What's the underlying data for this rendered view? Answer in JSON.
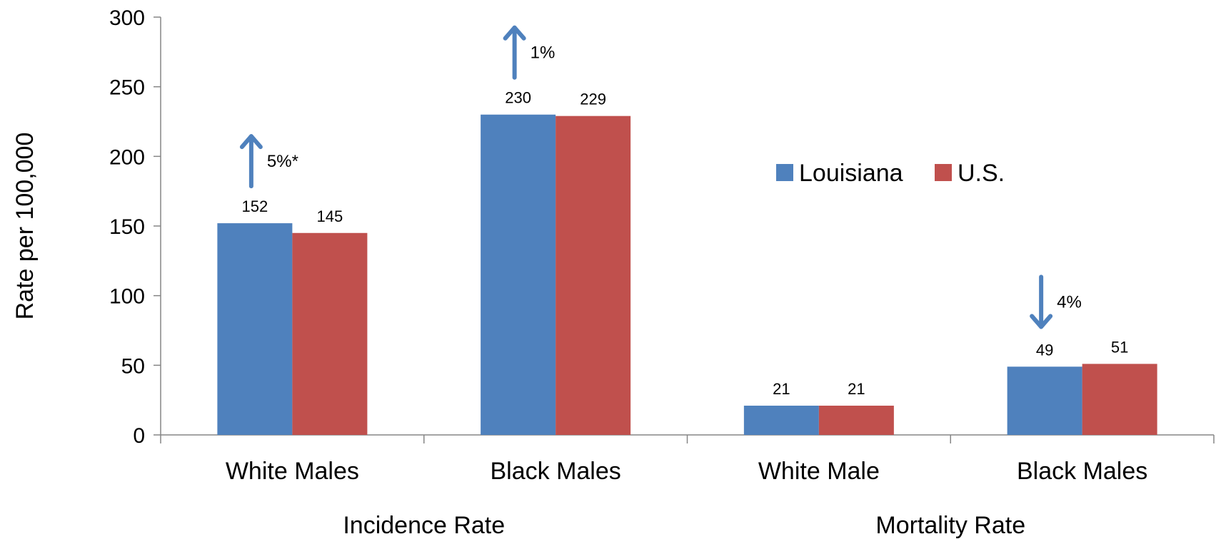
{
  "chart_data": {
    "type": "bar",
    "ylabel": "Rate per 100,000",
    "ylim": [
      0,
      300
    ],
    "yticks": [
      0,
      50,
      100,
      150,
      200,
      250,
      300
    ],
    "categories": [
      "White Males",
      "Black Males",
      "White Male",
      "Black Males"
    ],
    "groups": [
      {
        "label": "Incidence Rate",
        "categories": [
          0,
          1
        ]
      },
      {
        "label": "Mortality Rate",
        "categories": [
          2,
          3
        ]
      }
    ],
    "series": [
      {
        "name": "Louisiana",
        "color": "#4F81BD",
        "values": [
          152,
          230,
          21,
          49
        ]
      },
      {
        "name": "U.S.",
        "color": "#C0504D",
        "values": [
          145,
          229,
          21,
          51
        ]
      }
    ],
    "data_labels": [
      [
        "152",
        "230",
        "21",
        "49"
      ],
      [
        "145",
        "229",
        "21",
        "51"
      ]
    ],
    "annotations": [
      {
        "category": 0,
        "direction": "up",
        "text": "5%*"
      },
      {
        "category": 1,
        "direction": "up",
        "text": "1%"
      },
      {
        "category": 3,
        "direction": "down",
        "text": "4%"
      }
    ],
    "legend": {
      "position": "right",
      "entries": [
        "Louisiana",
        "U.S."
      ]
    },
    "arrow_color": "#4F81BD",
    "grid": false
  }
}
